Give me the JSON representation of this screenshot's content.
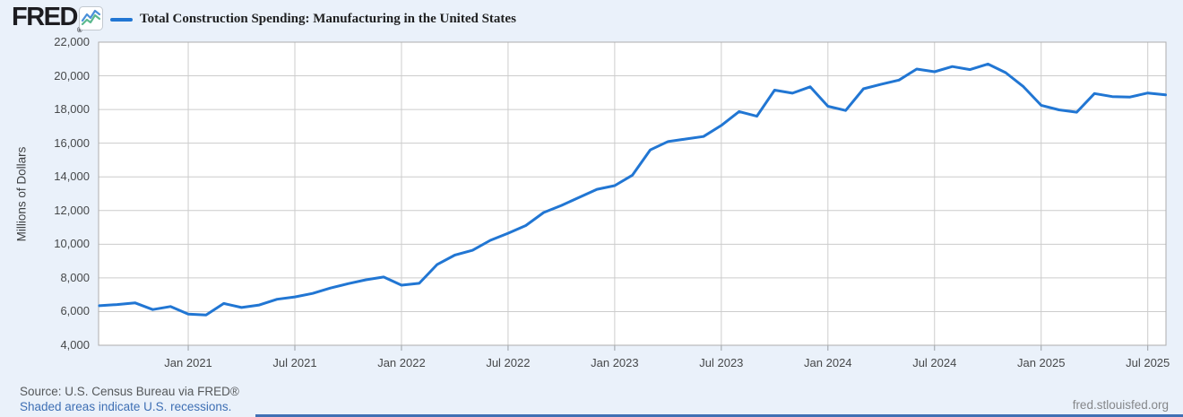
{
  "header": {
    "logo_text": "FRED",
    "logo_registered": "®",
    "legend_label": "Total Construction Spending: Manufacturing in the United States"
  },
  "chart_data": {
    "type": "line",
    "title": "Total Construction Spending: Manufacturing in the United States",
    "ylabel": "Millions of Dollars",
    "xlabel": "",
    "ylim": [
      4000,
      22000
    ],
    "y_tick_interval": 2000,
    "grid": true,
    "legend_position": "top-left",
    "line_color": "#2176d3",
    "y_tick_labels": [
      "22,000",
      "20,000",
      "18,000",
      "16,000",
      "14,000",
      "12,000",
      "10,000",
      "8,000",
      "6,000",
      "4,000"
    ],
    "x_tick_labels": [
      "Jan 2021",
      "Jul 2021",
      "Jan 2022",
      "Jul 2022",
      "Jan 2023",
      "Jul 2023",
      "Jan 2024",
      "Jul 2024",
      "Jan 2025",
      "Jul 2025"
    ],
    "x_tick_positions": [
      5,
      11,
      17,
      23,
      29,
      35,
      41,
      47,
      53,
      59
    ],
    "x": [
      "2020-08",
      "2020-09",
      "2020-10",
      "2020-11",
      "2020-12",
      "2021-01",
      "2021-02",
      "2021-03",
      "2021-04",
      "2021-05",
      "2021-06",
      "2021-07",
      "2021-08",
      "2021-09",
      "2021-10",
      "2021-11",
      "2021-12",
      "2022-01",
      "2022-02",
      "2022-03",
      "2022-04",
      "2022-05",
      "2022-06",
      "2022-07",
      "2022-08",
      "2022-09",
      "2022-10",
      "2022-11",
      "2022-12",
      "2023-01",
      "2023-02",
      "2023-03",
      "2023-04",
      "2023-05",
      "2023-06",
      "2023-07",
      "2023-08",
      "2023-09",
      "2023-10",
      "2023-11",
      "2023-12",
      "2024-01",
      "2024-02",
      "2024-03",
      "2024-04",
      "2024-05",
      "2024-06",
      "2024-07",
      "2024-08",
      "2024-09",
      "2024-10",
      "2024-11",
      "2024-12",
      "2025-01",
      "2025-02",
      "2025-03",
      "2025-04",
      "2025-05",
      "2025-06",
      "2025-07",
      "2025-08"
    ],
    "values": [
      6350,
      6420,
      6520,
      6120,
      6300,
      5850,
      5800,
      6480,
      6240,
      6390,
      6730,
      6870,
      7080,
      7400,
      7660,
      7890,
      8050,
      7570,
      7680,
      8790,
      9350,
      9640,
      10230,
      10650,
      11110,
      11880,
      12300,
      12780,
      13260,
      13480,
      14100,
      15600,
      16100,
      16250,
      16400,
      17050,
      17880,
      17600,
      19150,
      18970,
      19350,
      18190,
      17940,
      19230,
      19500,
      19750,
      20400,
      20240,
      20550,
      20370,
      20700,
      20190,
      19360,
      18250,
      17980,
      17840,
      18950,
      18770,
      18740,
      18980,
      18870
    ]
  },
  "footer": {
    "source": "Source: U.S. Census Bureau via FRED®",
    "recessions_note": "Shaded areas indicate U.S. recessions.",
    "site": "fred.stlouisfed.org"
  },
  "colors": {
    "accent_blue": "#2176d3",
    "link_blue": "#3e6fb4",
    "background": "#eaf1fa",
    "gridline": "#cccccc",
    "plot_border": "#adadad"
  }
}
